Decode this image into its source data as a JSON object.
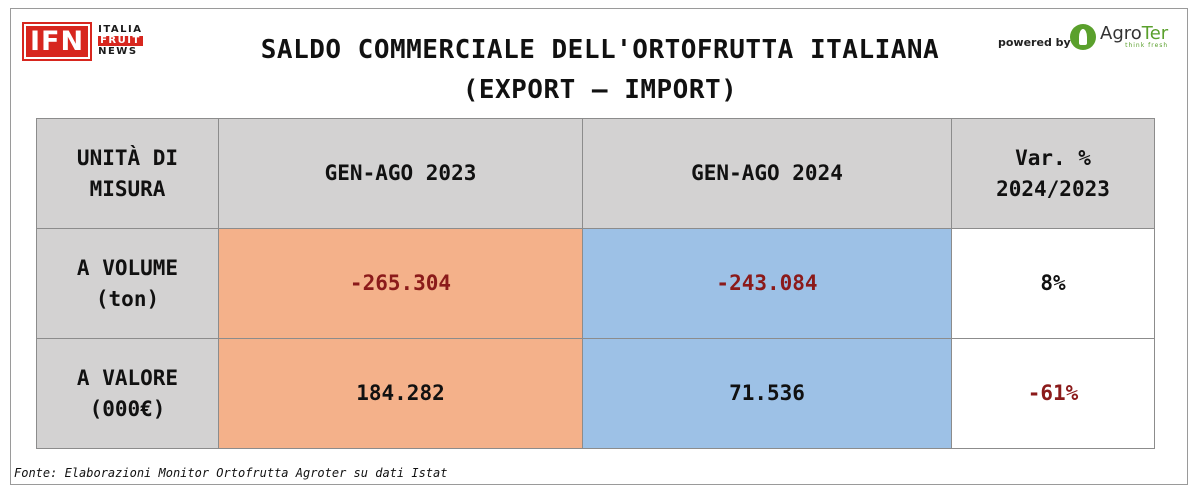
{
  "header": {
    "logo_left": {
      "box": "IFN",
      "line1": "ITALIA",
      "line2": "FRUIT",
      "line3": "NEWS"
    },
    "title_line1": "SALDO COMMERCIALE DELL'ORTOFRUTTA ITALIANA",
    "title_line2": "(EXPORT – IMPORT)",
    "powered_by": "powered by",
    "logo_right": {
      "name_a": "Agro",
      "name_b": "Ter",
      "tagline": "think fresh",
      "icon": "leaf-icon"
    }
  },
  "table": {
    "header": {
      "col0_line1": "UNITÀ DI",
      "col0_line2": "MISURA",
      "col1": "GEN-AGO 2023",
      "col2": "GEN-AGO 2024",
      "col3_line1": "Var. %",
      "col3_line2": "2024/2023"
    },
    "rows": [
      {
        "label_line1": "A VOLUME",
        "label_line2": "(ton)",
        "v2023": "-265.304",
        "v2024": "-243.084",
        "var": "8%"
      },
      {
        "label_line1": "A VALORE",
        "label_line2": "(000€)",
        "v2023": "184.282",
        "v2024": "71.536",
        "var": "-61%"
      }
    ]
  },
  "colors": {
    "orange": "#f4b18a",
    "blue": "#9dc1e6",
    "grey": "#d3d2d2",
    "negative": "#8b1a1a",
    "brand_red": "#d7261e",
    "brand_green": "#5aa02c"
  },
  "footer": {
    "source": "Fonte: Elaborazioni Monitor Ortofrutta Agroter su dati Istat"
  }
}
